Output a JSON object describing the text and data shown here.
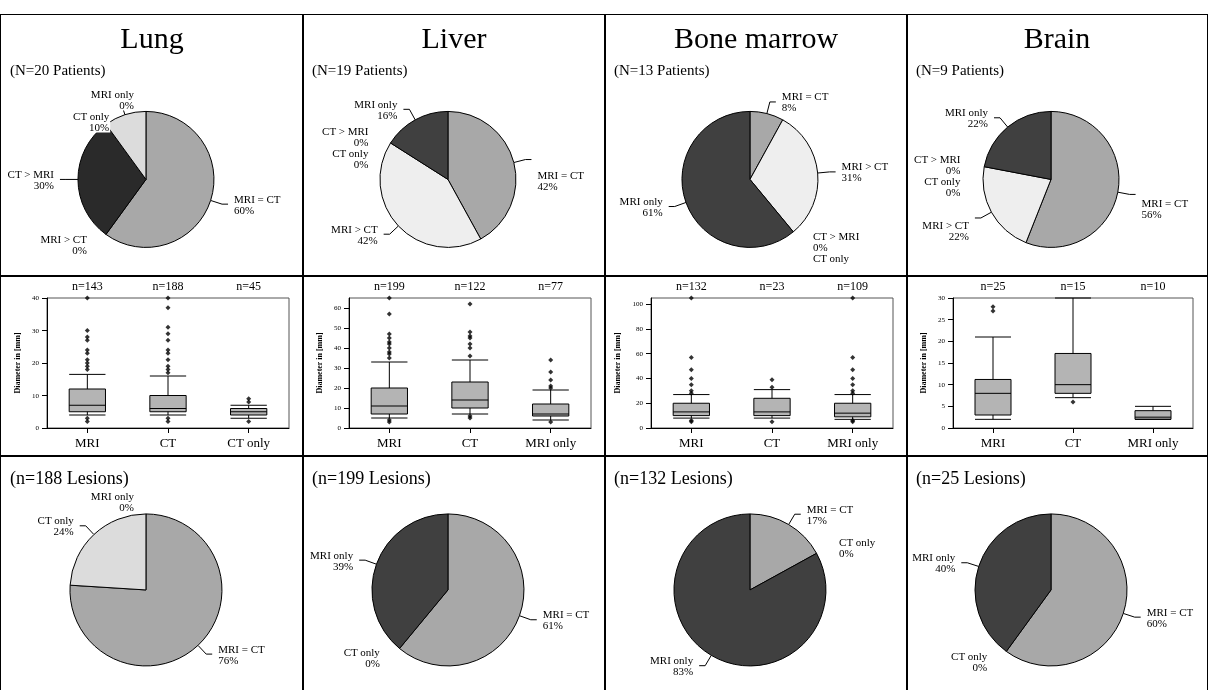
{
  "chart_data": [
    {
      "type": "pie",
      "title": "Lung",
      "subtitle": "(N=20 Patients)",
      "categories": [
        "MRI = CT",
        "MRI > CT",
        "CT > MRI",
        "CT only",
        "MRI only"
      ],
      "values": [
        60,
        0,
        30,
        10,
        0
      ],
      "value_labels": [
        "60%",
        "0%",
        "30%",
        "10%",
        "0%"
      ],
      "colors": [
        "#a8a8a8",
        "#eeeeee",
        "#2a2a2a",
        "#dcdcdc",
        "#404040"
      ]
    },
    {
      "type": "pie",
      "title": "Liver",
      "subtitle": "(N=19 Patients)",
      "categories": [
        "MRI = CT",
        "MRI > CT",
        "CT > MRI",
        "CT only",
        "MRI only"
      ],
      "values": [
        42,
        42,
        0,
        0,
        16
      ],
      "value_labels": [
        "42%",
        "42%",
        "0%",
        "0%",
        "16%"
      ],
      "colors": [
        "#a8a8a8",
        "#eeeeee",
        "#2a2a2a",
        "#dcdcdc",
        "#404040"
      ]
    },
    {
      "type": "pie",
      "title": "Bone marrow",
      "subtitle": "(N=13 Patients)",
      "categories": [
        "MRI = CT",
        "MRI > CT",
        "CT > MRI",
        "CT only",
        "MRI only"
      ],
      "values": [
        8,
        31,
        0,
        0,
        61
      ],
      "value_labels": [
        "8%",
        "31%",
        "0%",
        null,
        "61%"
      ],
      "colors": [
        "#a8a8a8",
        "#eeeeee",
        "#2a2a2a",
        "#dcdcdc",
        "#404040"
      ]
    },
    {
      "type": "pie",
      "title": "Brain",
      "subtitle": "(N=9 Patients)",
      "categories": [
        "MRI = CT",
        "MRI > CT",
        "CT > MRI",
        "CT only",
        "MRI only"
      ],
      "values": [
        56,
        22,
        0,
        0,
        22
      ],
      "value_labels": [
        "56%",
        "22%",
        "0%",
        "0%",
        "22%"
      ],
      "colors": [
        "#a8a8a8",
        "#eeeeee",
        "#2a2a2a",
        "#dcdcdc",
        "#404040"
      ]
    },
    {
      "type": "box",
      "ylabel": "Diameter in [mm]",
      "categories": [
        "MRI",
        "CT",
        "CT only"
      ],
      "annotations": [
        "n=143",
        "n=188",
        "n=45"
      ],
      "color": "#b4b4b4",
      "marker": "diamond",
      "ylim": [
        0,
        40
      ],
      "yticks": [
        0,
        10,
        20,
        30,
        40
      ],
      "boxes": [
        {
          "low": 4,
          "q1": 5,
          "median": 7,
          "q3": 12,
          "high": 16.5,
          "outliers": [
            2,
            3,
            18,
            19,
            20,
            21,
            23,
            24,
            27,
            28,
            30,
            40
          ]
        },
        {
          "low": 4,
          "q1": 5,
          "median": 6,
          "q3": 10,
          "high": 16,
          "outliers": [
            2,
            3,
            17,
            18,
            19,
            21,
            23,
            24,
            27,
            29,
            31,
            37,
            40
          ]
        },
        {
          "low": 3,
          "q1": 4,
          "median": 5,
          "q3": 6,
          "high": 7,
          "outliers": [
            2,
            8,
            9
          ]
        }
      ]
    },
    {
      "type": "box",
      "ylabel": "Diameter in [mm]",
      "categories": [
        "MRI",
        "CT",
        "MRI only"
      ],
      "annotations": [
        "n=199",
        "n=122",
        "n=77"
      ],
      "color": "#b4b4b4",
      "marker": "diamond",
      "ylim": [
        0,
        65
      ],
      "yticks": [
        0,
        10,
        20,
        30,
        40,
        50,
        60
      ],
      "boxes": [
        {
          "low": 5,
          "q1": 7,
          "median": 11,
          "q3": 20,
          "high": 33,
          "outliers": [
            3,
            4,
            35,
            37,
            38,
            40,
            42,
            43,
            45,
            47,
            57,
            65
          ]
        },
        {
          "low": 7,
          "q1": 10,
          "median": 14,
          "q3": 23,
          "high": 34,
          "outliers": [
            5,
            6,
            36,
            40,
            42,
            45,
            46,
            48,
            62
          ]
        },
        {
          "low": 4,
          "q1": 6,
          "median": 7,
          "q3": 12,
          "high": 19,
          "outliers": [
            3,
            20,
            21,
            24,
            28,
            34
          ]
        }
      ]
    },
    {
      "type": "box",
      "ylabel": "Diameter in [mm]",
      "categories": [
        "MRI",
        "CT",
        "MRI only"
      ],
      "annotations": [
        "n=132",
        "n=23",
        "n=109"
      ],
      "color": "#b4b4b4",
      "marker": "diamond",
      "ylim": [
        0,
        105
      ],
      "yticks": [
        0,
        20,
        40,
        60,
        80,
        100
      ],
      "boxes": [
        {
          "low": 8,
          "q1": 10,
          "median": 13,
          "q3": 20,
          "high": 27,
          "outliers": [
            5,
            6,
            28,
            30,
            35,
            40,
            47,
            57,
            105
          ]
        },
        {
          "low": 8,
          "q1": 10,
          "median": 13,
          "q3": 24,
          "high": 31,
          "outliers": [
            5,
            33,
            39
          ]
        },
        {
          "low": 7,
          "q1": 9,
          "median": 12,
          "q3": 20,
          "high": 27,
          "outliers": [
            5,
            6,
            28,
            30,
            35,
            40,
            47,
            57,
            105
          ]
        }
      ]
    },
    {
      "type": "box",
      "ylabel": "Diameter in [mm]",
      "categories": [
        "MRI",
        "CT",
        "MRI only"
      ],
      "annotations": [
        "n=25",
        "n=15",
        "n=10"
      ],
      "color": "#b4b4b4",
      "marker": "diamond",
      "ylim": [
        0,
        30
      ],
      "yticks": [
        0,
        5,
        10,
        15,
        20,
        25,
        30
      ],
      "boxes": [
        {
          "low": 2,
          "q1": 3,
          "median": 8,
          "q3": 11.2,
          "high": 21,
          "outliers": [
            27,
            28
          ]
        },
        {
          "low": 7,
          "q1": 8,
          "median": 10,
          "q3": 17.2,
          "high": 30,
          "outliers": [
            6
          ]
        },
        {
          "low": 2,
          "q1": 2,
          "median": 2.5,
          "q3": 4,
          "high": 5
        }
      ]
    },
    {
      "type": "pie",
      "title": "(n=188 Lesions)",
      "categories": [
        "MRI = CT",
        "CT only",
        "MRI only"
      ],
      "values": [
        76,
        24,
        0
      ],
      "value_labels": [
        "76%",
        "24%",
        "0%"
      ],
      "colors": [
        "#a8a8a8",
        "#dcdcdc",
        "#404040"
      ]
    },
    {
      "type": "pie",
      "title": "(n=199 Lesions)",
      "categories": [
        "MRI = CT",
        "CT only",
        "MRI only"
      ],
      "values": [
        61,
        0,
        39
      ],
      "value_labels": [
        "61%",
        "0%",
        "39%"
      ],
      "colors": [
        "#a8a8a8",
        "#dcdcdc",
        "#404040"
      ]
    },
    {
      "type": "pie",
      "title": "(n=132 Lesions)",
      "categories": [
        "MRI = CT",
        "CT only",
        "MRI only"
      ],
      "values": [
        17,
        0,
        83
      ],
      "value_labels": [
        "17%",
        "0%",
        "83%"
      ],
      "colors": [
        "#a8a8a8",
        "#dcdcdc",
        "#404040"
      ]
    },
    {
      "type": "pie",
      "title": "(n=25 Lesions)",
      "categories": [
        "MRI = CT",
        "CT only",
        "MRI only"
      ],
      "values": [
        60,
        0,
        40
      ],
      "value_labels": [
        "60%",
        "0%",
        "40%"
      ],
      "colors": [
        "#a8a8a8",
        "#dcdcdc",
        "#404040"
      ]
    }
  ]
}
